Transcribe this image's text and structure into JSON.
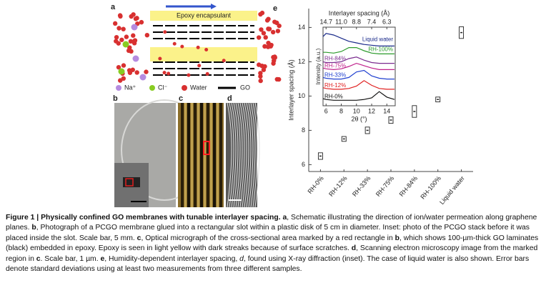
{
  "panel_labels": [
    "a",
    "b",
    "c",
    "d",
    "e"
  ],
  "schematic": {
    "banner": "Epoxy encapsulant",
    "legend": [
      "Na⁺",
      "Cl⁻",
      "Water",
      "GO"
    ]
  },
  "chart_data": [
    {
      "type": "errorbar",
      "ylabel": "Interlayer spacing (Å)",
      "categories": [
        "RH-0%",
        "RH-12%",
        "RH-33%",
        "RH-75%",
        "RH-84%",
        "RH-100%",
        "Liquid water"
      ],
      "values": [
        6.5,
        7.5,
        8.0,
        8.6,
        9.1,
        9.8,
        13.7
      ],
      "errors": [
        0.15,
        0.1,
        0.15,
        0.15,
        0.3,
        0.1,
        0.3
      ],
      "color": "#222222",
      "ylim": [
        5.6,
        15.1
      ],
      "yticks": [
        6,
        8,
        10,
        12,
        14
      ]
    },
    {
      "type": "line",
      "xlabel": "2θ (°)",
      "ylabel": "Intensity (a.u.)",
      "x2label": "Interlayer spacing (Å)",
      "x": [
        5.6,
        6,
        7,
        8,
        9,
        10,
        11,
        12,
        13,
        14,
        15
      ],
      "xlim": [
        5.6,
        15.1
      ],
      "xticks": [
        6,
        8,
        10,
        12,
        14
      ],
      "x2ticks": [
        {
          "value": 6,
          "label": "14.7"
        },
        {
          "value": 8,
          "label": "11.0"
        },
        {
          "value": 10,
          "label": "8.8"
        },
        {
          "value": 12,
          "label": "7.4"
        },
        {
          "value": 14,
          "label": "6.3"
        }
      ],
      "ylim": [
        0,
        10
      ],
      "series": [
        {
          "name": "RH-0%",
          "color": "#111111",
          "values": [
            0.9,
            0.8,
            0.7,
            0.7,
            0.7,
            0.7,
            0.8,
            1.0,
            1.8,
            1.1,
            0.8
          ]
        },
        {
          "name": "RH-12%",
          "color": "#e02020",
          "values": [
            2.3,
            2.2,
            2.1,
            2.1,
            2.2,
            2.5,
            3.2,
            2.6,
            2.2,
            2.1,
            2.1
          ]
        },
        {
          "name": "RH-33%",
          "color": "#2040d0",
          "values": [
            3.6,
            3.5,
            3.4,
            3.4,
            3.6,
            4.3,
            4.5,
            3.8,
            3.5,
            3.4,
            3.4
          ]
        },
        {
          "name": "RH-75%",
          "color": "#c0208b",
          "values": [
            4.8,
            4.7,
            4.6,
            4.7,
            5.0,
            5.4,
            5.1,
            4.8,
            4.6,
            4.6,
            4.6
          ]
        },
        {
          "name": "RH-84%",
          "color": "#7b2c8f",
          "values": [
            5.6,
            5.5,
            5.5,
            5.6,
            6.0,
            6.2,
            5.8,
            5.5,
            5.4,
            5.4,
            5.4
          ]
        },
        {
          "name": "RH-100%",
          "color": "#2a9a2a",
          "values": [
            6.8,
            6.8,
            6.7,
            6.9,
            7.4,
            7.4,
            7.0,
            6.7,
            6.6,
            6.6,
            6.6
          ]
        },
        {
          "name": "Liquid water",
          "color": "#1a2a8a",
          "values": [
            8.8,
            9.2,
            9.0,
            8.6,
            8.2,
            8.0,
            7.8,
            7.7,
            7.6,
            7.6,
            7.6
          ]
        }
      ]
    }
  ],
  "caption": [
    {
      "text": "Figure 1 | Physically confined GO membranes with tunable interlayer spacing.",
      "bold": true
    },
    {
      "text": " "
    },
    {
      "text": "a",
      "bold": true
    },
    {
      "text": ", Schematic illustrating the direction of ion/water permeation along graphene planes. "
    },
    {
      "text": "b",
      "bold": true
    },
    {
      "text": ", Photograph of a PCGO membrane glued into a rectangular slot within a plastic disk of 5 cm in diameter. Inset: photo of the PCGO stack before it was placed inside the slot. Scale bar, 5 mm. "
    },
    {
      "text": "c",
      "bold": true
    },
    {
      "text": ", Optical micrograph of the cross-sectional area marked by a red rectangle in "
    },
    {
      "text": "b",
      "bold": true
    },
    {
      "text": ", which shows 100-µm-thick GO laminates (black) embedded in epoxy. Epoxy is seen in light yellow with dark streaks because of surface scratches. "
    },
    {
      "text": "d",
      "bold": true
    },
    {
      "text": ", Scanning electron microscopy image from the marked region in "
    },
    {
      "text": "c",
      "bold": true
    },
    {
      "text": ". Scale bar, 1 µm. "
    },
    {
      "text": "e",
      "bold": true
    },
    {
      "text": ", Humidity-dependent interlayer spacing, "
    },
    {
      "text": "d",
      "italic": true
    },
    {
      "text": ", found using X-ray diffraction (inset). The case of liquid water is also shown. Error bars denote standard deviations using at least two measurements from three different samples."
    }
  ]
}
